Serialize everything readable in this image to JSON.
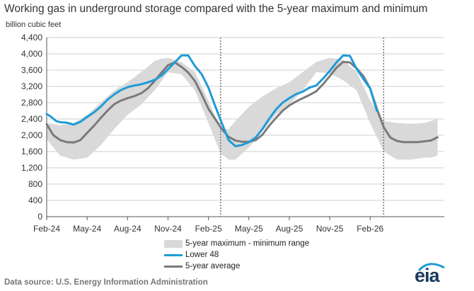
{
  "title": "Working gas in underground  storage compared with the 5-year maximum and minimum",
  "source": "Data source:  U.S. Energy Information Administration",
  "logo": "eia",
  "colors": {
    "lower48": "#1f9bd7",
    "average": "#7a7a7a",
    "range": "#d9d9d9",
    "grid": "#bfbfbf",
    "axis": "#555555"
  },
  "chart_data": {
    "type": "line",
    "ylabel": "billion cubic feet",
    "ylim": [
      0,
      4400
    ],
    "yticks": [
      0,
      400,
      800,
      1200,
      1600,
      2000,
      2400,
      2800,
      3200,
      3600,
      4000,
      4400
    ],
    "ytick_labels": [
      "0",
      "400",
      "800",
      "1,200",
      "1,600",
      "2,000",
      "2,400",
      "2,800",
      "3,200",
      "3,600",
      "4,000",
      "4,400"
    ],
    "xlim": [
      0,
      29.5
    ],
    "xticks": [
      0,
      3,
      6,
      9,
      12,
      15,
      18,
      21,
      24
    ],
    "xtick_labels": [
      "Feb-24",
      "May-24",
      "Aug-24",
      "Nov-24",
      "Feb-25",
      "May-25",
      "Aug-25",
      "Nov-25",
      "Feb-26"
    ],
    "x_unit": "months since Feb-24",
    "vertical_markers": [
      12.9,
      25.0
    ],
    "gridlines": true,
    "legend": [
      "5-year maximum - minimum range",
      "Lower 48",
      "5-year average"
    ],
    "series": [
      {
        "name": "5-year maximum",
        "role": "range-max",
        "x": [
          0,
          1,
          2,
          3,
          4,
          5,
          6,
          7,
          8,
          8.5,
          9,
          10,
          11,
          12,
          12.9,
          13.5,
          14,
          15,
          16,
          17,
          18,
          19,
          20,
          21,
          21.5,
          22,
          23,
          24,
          25,
          26,
          27,
          28,
          28.5,
          29
        ],
        "values": [
          2300,
          2250,
          2300,
          2500,
          2800,
          3100,
          3300,
          3550,
          3820,
          3880,
          3900,
          3800,
          3550,
          2850,
          2150,
          2150,
          2350,
          2700,
          2950,
          3150,
          3300,
          3550,
          3800,
          3900,
          3880,
          3850,
          3550,
          2850,
          2350,
          2300,
          2280,
          2300,
          2350,
          2400
        ]
      },
      {
        "name": "5-year minimum",
        "role": "range-min",
        "x": [
          0,
          0.5,
          1,
          2,
          3,
          4,
          5,
          6,
          7,
          8,
          9,
          10,
          11,
          12,
          12.9,
          13.5,
          14,
          15,
          16,
          17,
          18,
          19,
          20,
          21,
          22,
          23,
          24,
          25,
          26,
          27,
          28,
          28.5,
          29
        ],
        "values": [
          1900,
          1700,
          1500,
          1400,
          1450,
          1750,
          2150,
          2500,
          2750,
          3100,
          3550,
          3500,
          3100,
          2300,
          1550,
          1400,
          1400,
          1700,
          2100,
          2500,
          2750,
          3100,
          3550,
          3520,
          3350,
          3100,
          2300,
          1600,
          1400,
          1400,
          1450,
          1450,
          1500
        ]
      },
      {
        "name": "Lower 48",
        "role": "line",
        "x": [
          0,
          0.3,
          0.7,
          1,
          1.5,
          2,
          2.5,
          3,
          3.5,
          4,
          4.5,
          5,
          5.5,
          6,
          6.5,
          7,
          7.5,
          8,
          8.5,
          9,
          9.5,
          10,
          10.5,
          11,
          11.5,
          12,
          12.5,
          13,
          13.5,
          14,
          14.5,
          15,
          15.5,
          16,
          16.5,
          17,
          17.5,
          18,
          18.5,
          19,
          19.5,
          20,
          20.5,
          21,
          21.5,
          22,
          22.5,
          23,
          23.5,
          24,
          24.5
        ],
        "values": [
          2520,
          2460,
          2350,
          2320,
          2310,
          2260,
          2330,
          2450,
          2560,
          2700,
          2870,
          3000,
          3110,
          3180,
          3220,
          3250,
          3300,
          3360,
          3460,
          3620,
          3790,
          3960,
          3960,
          3700,
          3500,
          3170,
          2720,
          2290,
          1880,
          1730,
          1760,
          1830,
          1940,
          2150,
          2400,
          2630,
          2800,
          2910,
          3010,
          3070,
          3170,
          3220,
          3390,
          3580,
          3790,
          3960,
          3950,
          3630,
          3380,
          3150,
          2600
        ]
      },
      {
        "name": "5-year average",
        "role": "line",
        "x": [
          0,
          0.5,
          1,
          1.5,
          2,
          2.5,
          3,
          3.5,
          4,
          4.5,
          5,
          5.5,
          6,
          6.5,
          7,
          7.5,
          8,
          8.5,
          9,
          9.5,
          10,
          10.5,
          11,
          11.5,
          12,
          12.5,
          13,
          13.5,
          14,
          14.5,
          15,
          15.5,
          16,
          16.5,
          17,
          17.5,
          18,
          18.5,
          19,
          19.5,
          20,
          20.5,
          21,
          21.5,
          22,
          22.5,
          23,
          23.5,
          24,
          24.5,
          25,
          25.5,
          26,
          26.5,
          27,
          27.5,
          28,
          28.5,
          29
        ],
        "values": [
          2270,
          2000,
          1880,
          1830,
          1820,
          1880,
          2060,
          2230,
          2420,
          2600,
          2760,
          2850,
          2910,
          2960,
          3030,
          3150,
          3330,
          3530,
          3720,
          3790,
          3680,
          3540,
          3330,
          3000,
          2650,
          2400,
          2150,
          1960,
          1870,
          1840,
          1840,
          1880,
          2010,
          2230,
          2420,
          2600,
          2730,
          2830,
          2910,
          2990,
          3080,
          3250,
          3450,
          3660,
          3800,
          3790,
          3640,
          3450,
          3150,
          2650,
          2200,
          1940,
          1860,
          1830,
          1830,
          1830,
          1850,
          1870,
          1950
        ]
      }
    ]
  }
}
